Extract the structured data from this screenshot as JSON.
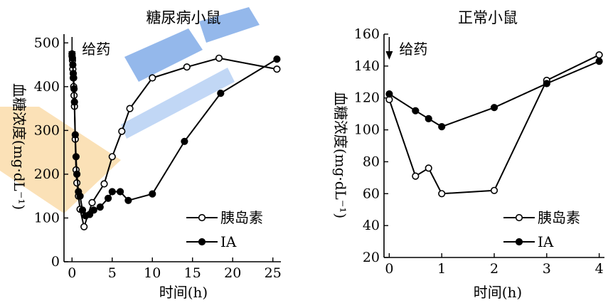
{
  "chart_data": [
    {
      "type": "line",
      "title": "糖尿病小鼠",
      "xlabel": "时间(h)",
      "ylabel": "血糖浓度(mg·dL⁻¹)",
      "xlim": [
        -1,
        26
      ],
      "ylim": [
        0,
        520
      ],
      "xticks": [
        0,
        5,
        10,
        15,
        20,
        25
      ],
      "yticks": [
        0,
        100,
        200,
        300,
        400,
        500
      ],
      "annotation": "给药",
      "annotation_x": 0,
      "legend_position": "bottom-right",
      "series": [
        {
          "name": "胰岛素",
          "marker": "open-circle",
          "x": [
            0,
            0.05,
            0.1,
            0.15,
            0.2,
            0.25,
            0.3,
            0.4,
            0.5,
            0.6,
            0.8,
            1,
            1.5,
            2.5,
            4,
            5,
            6.2,
            7.2,
            10,
            14.3,
            18.3,
            25.5
          ],
          "y": [
            470,
            460,
            440,
            420,
            400,
            380,
            355,
            280,
            210,
            180,
            150,
            120,
            80,
            135,
            178,
            240,
            298,
            350,
            420,
            445,
            465,
            440
          ]
        },
        {
          "name": "IA",
          "marker": "filled-circle",
          "x": [
            0,
            0.05,
            0.1,
            0.15,
            0.2,
            0.25,
            0.3,
            0.4,
            0.5,
            0.6,
            0.8,
            1,
            1.3,
            1.7,
            2.2,
            2.7,
            3.5,
            4.5,
            5,
            6,
            7,
            10,
            14,
            18.5,
            25.5
          ],
          "y": [
            475,
            465,
            450,
            430,
            420,
            395,
            365,
            290,
            240,
            200,
            160,
            150,
            118,
            105,
            108,
            118,
            125,
            145,
            160,
            160,
            140,
            155,
            275,
            385,
            463
          ]
        }
      ]
    },
    {
      "type": "line",
      "title": "正常小鼠",
      "xlabel": "时间(h)",
      "ylabel": "血糖浓度(mg·dL⁻¹)",
      "xlim": [
        -0.1,
        4.1
      ],
      "ylim": [
        20,
        160
      ],
      "xticks": [
        0,
        1,
        2,
        3,
        4
      ],
      "yticks": [
        20,
        40,
        60,
        80,
        100,
        120,
        140,
        160
      ],
      "annotation": "给药",
      "annotation_x": 0,
      "legend_position": "bottom-right",
      "series": [
        {
          "name": "胰岛素",
          "marker": "open-circle",
          "x": [
            0,
            0.5,
            0.75,
            1,
            2,
            3,
            4
          ],
          "y": [
            119,
            71,
            76,
            60,
            62,
            131,
            147
          ]
        },
        {
          "name": "IA",
          "marker": "filled-circle",
          "x": [
            0,
            0.5,
            0.75,
            1,
            2,
            3,
            4
          ],
          "y": [
            122.5,
            112,
            107,
            102,
            114,
            129,
            143
          ]
        }
      ]
    }
  ]
}
